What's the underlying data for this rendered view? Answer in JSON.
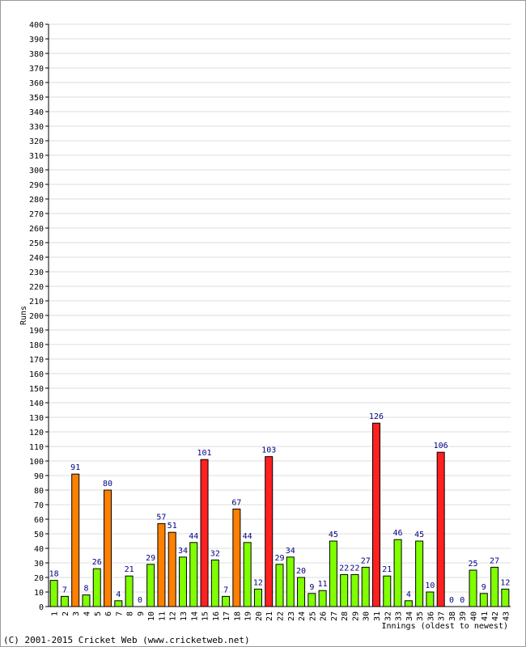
{
  "chart_data": {
    "type": "bar",
    "ylabel": "Runs",
    "xlabel": "Innings (oldest to newest)",
    "ylim": [
      0,
      400
    ],
    "ytick_step": 10,
    "grid": true,
    "categories": [
      "1",
      "2",
      "3",
      "4",
      "5",
      "6",
      "7",
      "8",
      "9",
      "10",
      "11",
      "12",
      "13",
      "14",
      "15",
      "16",
      "17",
      "18",
      "19",
      "20",
      "21",
      "22",
      "23",
      "24",
      "25",
      "26",
      "27",
      "28",
      "29",
      "30",
      "31",
      "32",
      "33",
      "34",
      "35",
      "36",
      "37",
      "38",
      "39",
      "40",
      "41",
      "42",
      "43"
    ],
    "values": [
      18,
      7,
      91,
      8,
      26,
      80,
      4,
      21,
      0,
      29,
      57,
      51,
      34,
      44,
      101,
      32,
      7,
      67,
      44,
      12,
      103,
      29,
      34,
      20,
      9,
      11,
      45,
      22,
      22,
      27,
      126,
      21,
      46,
      4,
      45,
      10,
      106,
      0,
      0,
      25,
      9,
      27,
      12
    ],
    "bar_kind": [
      "under50",
      "under50",
      "fifty",
      "under50",
      "under50",
      "fifty",
      "under50",
      "under50",
      "under50",
      "under50",
      "fifty",
      "fifty",
      "under50",
      "under50",
      "hundred",
      "under50",
      "under50",
      "fifty",
      "under50",
      "under50",
      "hundred",
      "under50",
      "under50",
      "under50",
      "under50",
      "under50",
      "under50",
      "under50",
      "under50",
      "under50",
      "hundred",
      "under50",
      "under50",
      "under50",
      "under50",
      "under50",
      "hundred",
      "under50",
      "under50",
      "under50",
      "under50",
      "under50",
      "under50"
    ],
    "colors": {
      "under50": "#7fff00",
      "fifty": "#ff8000",
      "hundred": "#ff2020",
      "label": "#000080",
      "grid": "#dddddd",
      "axis": "#000000"
    }
  },
  "footer": {
    "copyright": "(C) 2001-2015 Cricket Web (www.cricketweb.net)"
  }
}
